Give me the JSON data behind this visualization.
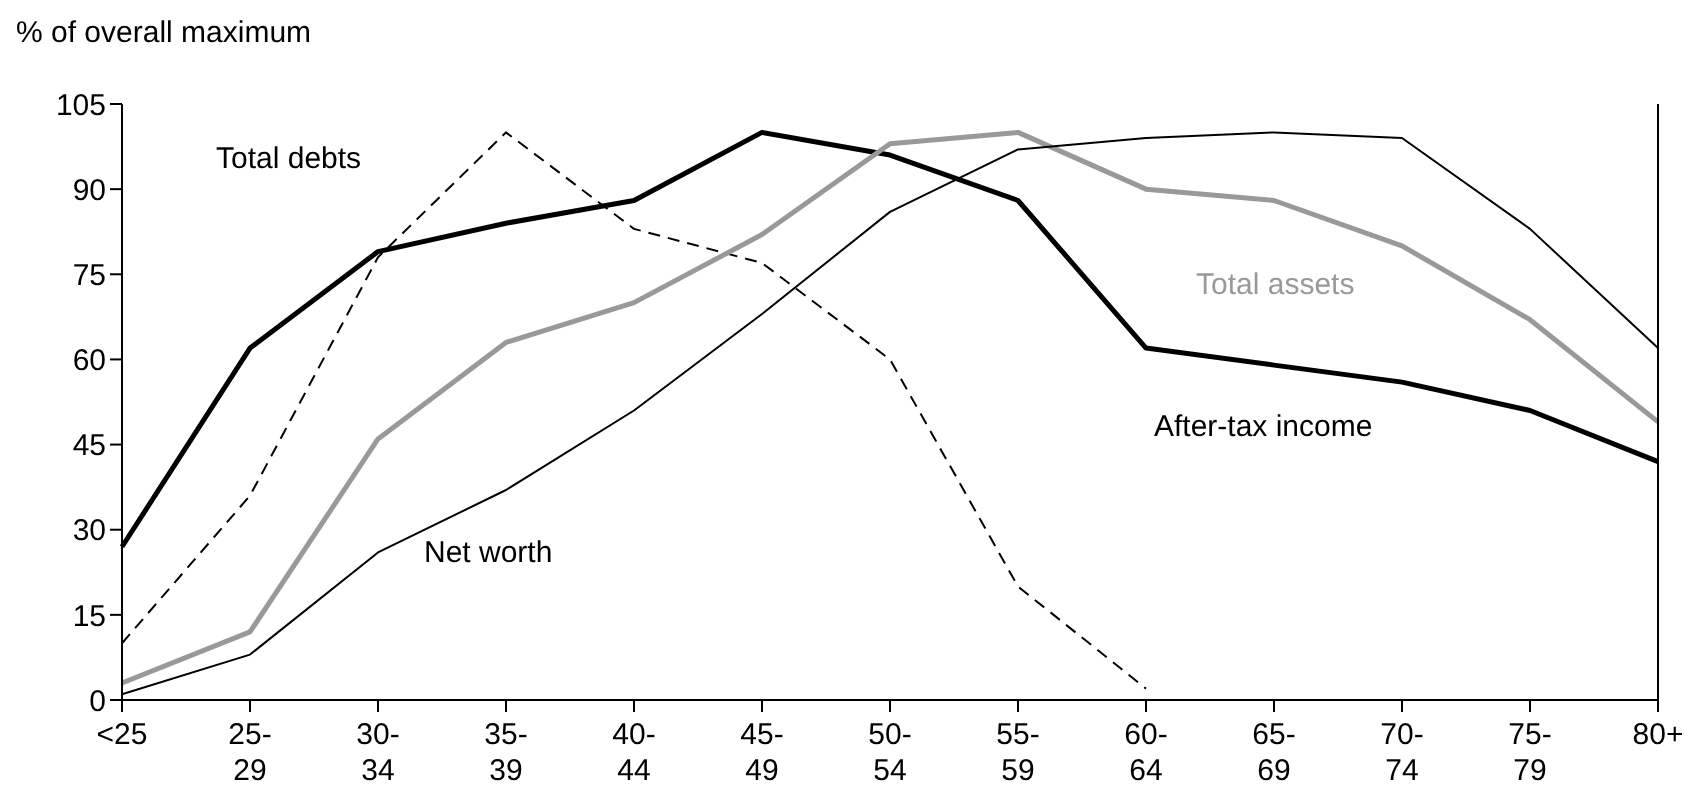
{
  "chart_data": {
    "type": "line",
    "ylabel": "% of overall maximum",
    "categories": [
      "<25",
      "25-29",
      "30-34",
      "35-39",
      "40-44",
      "45-49",
      "50-54",
      "55-59",
      "60-64",
      "65-69",
      "70-74",
      "75-79",
      "80+"
    ],
    "ylim": [
      0,
      105
    ],
    "yticks": [
      0,
      15,
      30,
      45,
      60,
      75,
      90,
      105
    ],
    "grid": false,
    "legend": false,
    "marker": "none",
    "series": [
      {
        "name": "Total debts",
        "color": "#000000",
        "line_style": "dashed",
        "values": [
          10,
          36,
          78,
          100,
          83,
          77,
          60,
          20,
          2,
          null,
          null,
          null,
          null
        ]
      },
      {
        "name": "After-tax income",
        "color": "#000000",
        "line_style": "solid",
        "values": [
          27,
          62,
          79,
          84,
          88,
          100,
          96,
          88,
          62,
          59,
          56,
          51,
          42
        ]
      },
      {
        "name": "Total assets",
        "color": "#999999",
        "line_style": "solid",
        "values": [
          3,
          12,
          46,
          63,
          70,
          82,
          98,
          100,
          90,
          88,
          80,
          67,
          49
        ]
      },
      {
        "name": "Net worth",
        "color": "#000000",
        "line_style": "solid",
        "values": [
          1,
          8,
          26,
          37,
          51,
          68,
          86,
          97,
          99,
          100,
          99,
          83,
          62
        ]
      }
    ]
  }
}
